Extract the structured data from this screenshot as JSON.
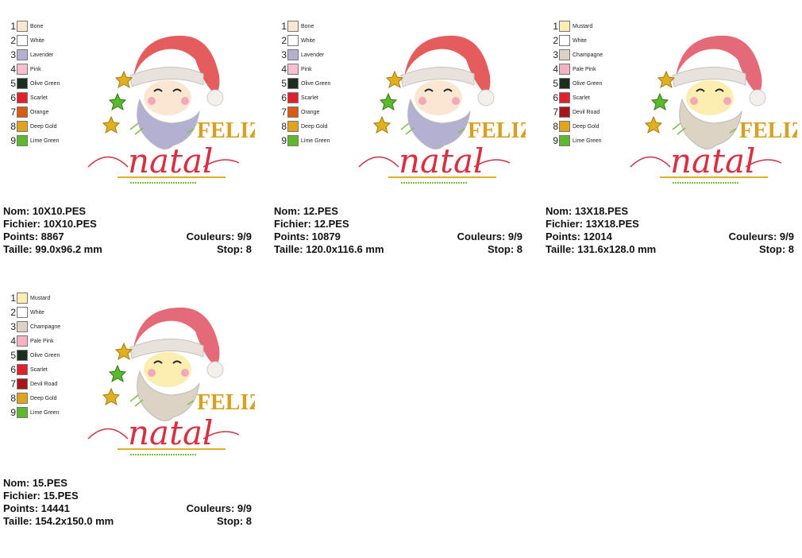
{
  "cards": [
    {
      "colors": [
        {
          "number": "1",
          "name": "Bone",
          "color": "#fbe6d2"
        },
        {
          "number": "2",
          "name": "White",
          "color": "#ffffff"
        },
        {
          "number": "3",
          "name": "Lavender",
          "color": "#b4b0d2"
        },
        {
          "number": "4",
          "name": "Pink",
          "color": "#f7bfd0"
        },
        {
          "number": "5",
          "name": "Olive Green",
          "color": "#1d2e1f"
        },
        {
          "number": "6",
          "name": "Scarlet",
          "color": "#e0202c"
        },
        {
          "number": "7",
          "name": "Orange",
          "color": "#d95a12"
        },
        {
          "number": "8",
          "name": "Deep Gold",
          "color": "#e0a41c"
        },
        {
          "number": "9",
          "name": "Lime Green",
          "color": "#5db82c"
        }
      ],
      "art": {
        "line1": "FELIZ",
        "line2": "natal"
      },
      "nom": "Nom: 10X10.PES",
      "fichier": "Fichier: 10X10.PES",
      "points": "Points: 8867",
      "taille": "Taille: 99.0x96.2 mm",
      "couleurs": "Couleurs: 9/9",
      "stop": "Stop: 8"
    },
    {
      "colors": [
        {
          "number": "1",
          "name": "Bone",
          "color": "#fbe6d2"
        },
        {
          "number": "2",
          "name": "White",
          "color": "#ffffff"
        },
        {
          "number": "3",
          "name": "Lavender",
          "color": "#b4b0d2"
        },
        {
          "number": "4",
          "name": "Pink",
          "color": "#f7bfd0"
        },
        {
          "number": "5",
          "name": "Olive Green",
          "color": "#1d2e1f"
        },
        {
          "number": "6",
          "name": "Scarlet",
          "color": "#e0202c"
        },
        {
          "number": "7",
          "name": "Orange",
          "color": "#d95a12"
        },
        {
          "number": "8",
          "name": "Deep Gold",
          "color": "#e0a41c"
        },
        {
          "number": "9",
          "name": "Lime Green",
          "color": "#5db82c"
        }
      ],
      "art": {
        "line1": "FELIZ",
        "line2": "natal"
      },
      "nom": "Nom: 12.PES",
      "fichier": "Fichier: 12.PES",
      "points": "Points: 10879",
      "taille": "Taille: 120.0x116.6 mm",
      "couleurs": "Couleurs: 9/9",
      "stop": "Stop: 8"
    },
    {
      "colors": [
        {
          "number": "1",
          "name": "Mustard",
          "color": "#fbeeb0"
        },
        {
          "number": "2",
          "name": "White",
          "color": "#ffffff"
        },
        {
          "number": "3",
          "name": "Champagne",
          "color": "#ddd3c4"
        },
        {
          "number": "4",
          "name": "Pale Pink",
          "color": "#f5b2c4"
        },
        {
          "number": "5",
          "name": "Olive Green",
          "color": "#1d2e1f"
        },
        {
          "number": "6",
          "name": "Scarlet",
          "color": "#e0202c"
        },
        {
          "number": "7",
          "name": "Devil Road",
          "color": "#a8141c"
        },
        {
          "number": "8",
          "name": "Deep Gold",
          "color": "#e0a41c"
        },
        {
          "number": "9",
          "name": "Lime Green",
          "color": "#5db82c"
        }
      ],
      "art": {
        "line1": "FELIZ",
        "line2": "natal"
      },
      "nom": "Nom: 13X18.PES",
      "fichier": "Fichier: 13X18.PES",
      "points": "Points: 12014",
      "taille": "Taille: 131.6x128.0 mm",
      "couleurs": "Couleurs: 9/9",
      "stop": "Stop: 8"
    },
    {
      "colors": [
        {
          "number": "1",
          "name": "Mustard",
          "color": "#fbeeb0"
        },
        {
          "number": "2",
          "name": "White",
          "color": "#ffffff"
        },
        {
          "number": "3",
          "name": "Champagne",
          "color": "#ddd3c4"
        },
        {
          "number": "4",
          "name": "Pale Pink",
          "color": "#f5b2c4"
        },
        {
          "number": "5",
          "name": "Olive Green",
          "color": "#1d2e1f"
        },
        {
          "number": "6",
          "name": "Scarlet",
          "color": "#e0202c"
        },
        {
          "number": "7",
          "name": "Devil Road",
          "color": "#a8141c"
        },
        {
          "number": "8",
          "name": "Deep Gold",
          "color": "#e0a41c"
        },
        {
          "number": "9",
          "name": "Lime Green",
          "color": "#5db82c"
        }
      ],
      "art": {
        "line1": "FELIZ",
        "line2": "natal"
      },
      "nom": "Nom: 15.PES",
      "fichier": "Fichier: 15.PES",
      "points": "Points: 14441",
      "taille": "Taille: 154.2x150.0 mm",
      "couleurs": "Couleurs: 9/9",
      "stop": "Stop: 8"
    }
  ]
}
